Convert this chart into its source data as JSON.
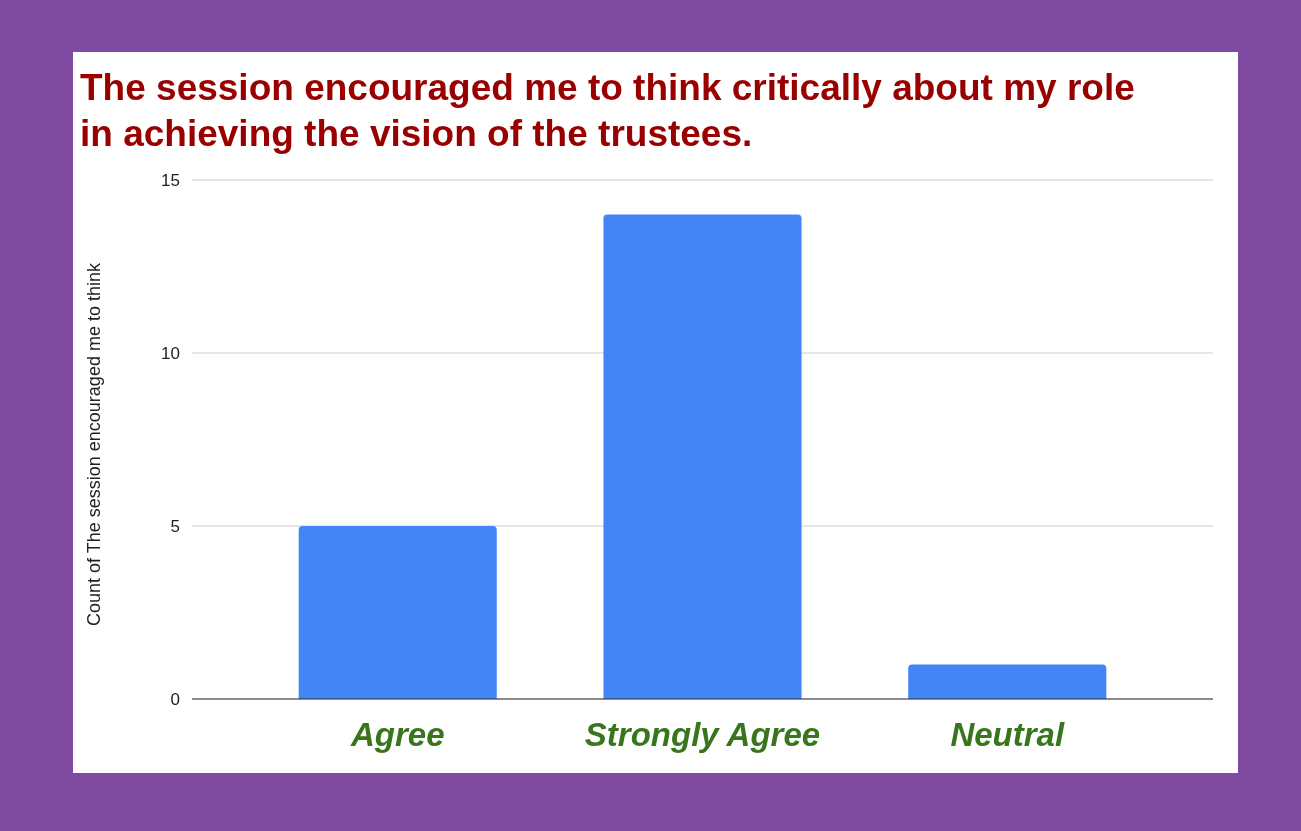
{
  "chart_data": {
    "type": "bar",
    "title": "The session encouraged me to think critically about my role in achieving the vision of the trustees.",
    "ylabel": "Count of The session encouraged me to think",
    "categories": [
      "Agree",
      "Strongly Agree",
      "Neutral"
    ],
    "values": [
      5,
      14,
      1
    ],
    "color": "#4285f4",
    "ylim": [
      0,
      15
    ],
    "yticks": [
      0,
      5,
      10,
      15
    ],
    "grid": "y"
  }
}
